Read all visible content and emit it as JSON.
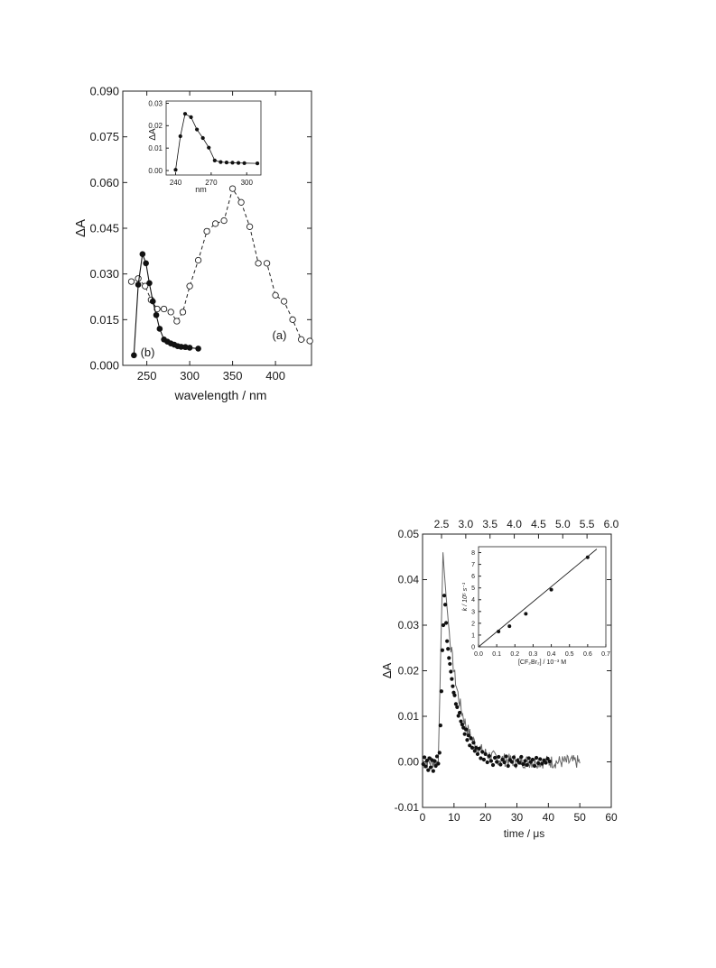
{
  "chart_data": [
    {
      "id": "spectrum",
      "type": "scatter",
      "xlabel": "wavelength / nm",
      "ylabel": "ΔA",
      "xlim": [
        222,
        442
      ],
      "ylim": [
        0,
        0.09
      ],
      "xticks": [
        250,
        300,
        350,
        400
      ],
      "yticks": [
        0.0,
        0.015,
        0.03,
        0.045,
        0.06,
        0.075,
        0.09
      ],
      "ytick_labels": [
        "0.000",
        "0.015",
        "0.030",
        "0.045",
        "0.060",
        "0.075",
        "0.090"
      ],
      "grid": false,
      "series": [
        {
          "label": "(a)",
          "marker": "open-circle",
          "line": "dashed",
          "x": [
            232,
            240,
            248,
            255,
            262,
            270,
            278,
            285,
            292,
            300,
            310,
            320,
            330,
            340,
            350,
            360,
            370,
            380,
            390,
            400,
            410,
            420,
            430,
            440
          ],
          "y": [
            0.0275,
            0.0285,
            0.026,
            0.0215,
            0.0185,
            0.0185,
            0.0175,
            0.0145,
            0.0175,
            0.026,
            0.0345,
            0.044,
            0.0465,
            0.0475,
            0.058,
            0.0535,
            0.0455,
            0.0335,
            0.0335,
            0.023,
            0.021,
            0.015,
            0.0085,
            0.008
          ]
        },
        {
          "label": "(b)",
          "marker": "filled-circle",
          "line": "solid",
          "x": [
            235,
            240,
            245,
            249,
            253,
            257,
            261,
            265,
            270,
            274,
            278,
            282,
            286,
            290,
            295,
            300,
            310
          ],
          "y": [
            0.0033,
            0.0265,
            0.0365,
            0.0335,
            0.027,
            0.021,
            0.0165,
            0.012,
            0.0085,
            0.0078,
            0.0072,
            0.0068,
            0.0063,
            0.0061,
            0.006,
            0.0058,
            0.0055
          ]
        }
      ]
    },
    {
      "id": "spectrum-inset",
      "type": "line",
      "xlabel": "nm",
      "ylabel": "ΔA",
      "xlim": [
        232,
        312
      ],
      "ylim": [
        -0.002,
        0.031
      ],
      "xticks": [
        240,
        270,
        300
      ],
      "yticks": [
        0.0,
        0.01,
        0.02,
        0.03
      ],
      "ytick_labels": [
        "0.00",
        "0.01",
        "0.02",
        "0.03"
      ],
      "series": [
        {
          "marker": "filled-circle",
          "x": [
            240,
            244,
            248,
            253,
            258,
            263,
            268,
            273,
            278,
            283,
            288,
            293,
            298,
            309
          ],
          "y": [
            0.0003,
            0.0153,
            0.0253,
            0.0238,
            0.0183,
            0.0145,
            0.0102,
            0.0045,
            0.0038,
            0.0036,
            0.0035,
            0.0034,
            0.0033,
            0.0032
          ]
        }
      ]
    },
    {
      "id": "kinetics",
      "type": "scatter",
      "xlabel": "time / μs",
      "ylabel": "ΔA",
      "xlim": [
        0,
        60
      ],
      "ylim": [
        -0.01,
        0.05
      ],
      "xticks": [
        0,
        10,
        20,
        30,
        40,
        50,
        60
      ],
      "yticks": [
        -0.01,
        0.0,
        0.01,
        0.02,
        0.03,
        0.04,
        0.05
      ],
      "ytick_labels": [
        "-0.01",
        "0.00",
        "0.01",
        "0.02",
        "0.03",
        "0.04",
        "0.05"
      ],
      "top_axis_ticks": [
        "2.5",
        "3.0",
        "3.5",
        "4.0",
        "4.5",
        "5.0",
        "5.5",
        "6.0"
      ],
      "grid": false,
      "fit_model": {
        "baseline_end_us": 5.0,
        "peak_time_us": 6.5,
        "peak_value": 0.046,
        "decay_tau_us": 4.2,
        "end_us": 50
      },
      "points": {
        "t": [
          0.2,
          0.6,
          1.0,
          1.4,
          1.8,
          2.2,
          2.6,
          3.0,
          3.4,
          3.8,
          4.2,
          4.6,
          5.0,
          5.4,
          5.7,
          6.0,
          6.3,
          6.6,
          6.9,
          7.2,
          7.5,
          7.8,
          8.1,
          8.4,
          8.7,
          9.0,
          9.3,
          9.6,
          9.9,
          10.2,
          10.6,
          11.0,
          11.4,
          11.8,
          12.2,
          12.6,
          13.0,
          13.4,
          13.8,
          14.2,
          14.6,
          15.0,
          15.4,
          15.8,
          16.2,
          16.6,
          17.0,
          17.5,
          18.0,
          18.5,
          19.0,
          19.5,
          20.0,
          20.6,
          21.2,
          21.8,
          22.4,
          23.0,
          23.6,
          24.2,
          24.8,
          25.4,
          26.0,
          26.6,
          27.2,
          27.8,
          28.4,
          29.0,
          29.6,
          30.2,
          30.8,
          31.4,
          32.0,
          32.6,
          33.2,
          33.8,
          34.4,
          35.0,
          35.6,
          36.2,
          36.8,
          37.4,
          38.0,
          38.6,
          39.2,
          39.8,
          40.4
        ],
        "y": [
          -0.0005,
          0.001,
          -0.001,
          0.0003,
          -0.0018,
          0.0008,
          -0.0012,
          0.0004,
          -0.002,
          0.0002,
          -0.0009,
          0.0012,
          -0.0004,
          0.002,
          0.008,
          0.0155,
          0.0245,
          0.03,
          0.0365,
          0.0345,
          0.0305,
          0.0265,
          0.0248,
          0.0228,
          0.0215,
          0.0198,
          0.0182,
          0.0166,
          0.0152,
          0.0146,
          0.0127,
          0.012,
          0.0101,
          0.0108,
          0.0089,
          0.0082,
          0.0075,
          0.0061,
          0.0071,
          0.0048,
          0.0058,
          0.0036,
          0.0052,
          0.0031,
          0.0042,
          0.0024,
          0.0031,
          0.0017,
          0.0029,
          0.0008,
          0.0022,
          0.0005,
          0.0017,
          -0.0001,
          0.0013,
          0.0002,
          -0.0007,
          0.0009,
          0.0,
          0.0011,
          -0.0006,
          0.0005,
          -0.0001,
          0.0012,
          -0.0009,
          0.0004,
          0.0,
          0.001,
          -0.0008,
          0.0003,
          -0.0002,
          0.0011,
          -0.0005,
          0.0002,
          -0.0007,
          0.0008,
          0.0,
          0.0005,
          -0.0009,
          0.0009,
          -0.0003,
          0.0006,
          -0.0004,
          0.0003,
          -0.0002,
          0.0007,
          0.0001
        ]
      }
    },
    {
      "id": "kinetics-inset",
      "type": "scatter",
      "xlabel": "[CF₂Br₂] / 10⁻³ M",
      "ylabel": "k / 10⁵ s⁻¹",
      "xlim": [
        0,
        0.7
      ],
      "ylim": [
        0,
        8.5
      ],
      "xticks": [
        0.0,
        0.1,
        0.2,
        0.3,
        0.4,
        0.5,
        0.6,
        0.7
      ],
      "xtick_labels": [
        "0.0",
        "0.1",
        "0.2",
        "0.3",
        "0.4",
        "0.5",
        "0.6",
        "0.7"
      ],
      "yticks": [
        0,
        1,
        2,
        3,
        4,
        5,
        6,
        7,
        8
      ],
      "points": {
        "x": [
          0.11,
          0.17,
          0.26,
          0.4,
          0.6
        ],
        "y": [
          1.3,
          1.75,
          2.8,
          4.85,
          7.6
        ]
      },
      "fit_line": {
        "x": [
          0.0,
          0.65
        ],
        "y": [
          0.0,
          8.3
        ]
      }
    }
  ]
}
